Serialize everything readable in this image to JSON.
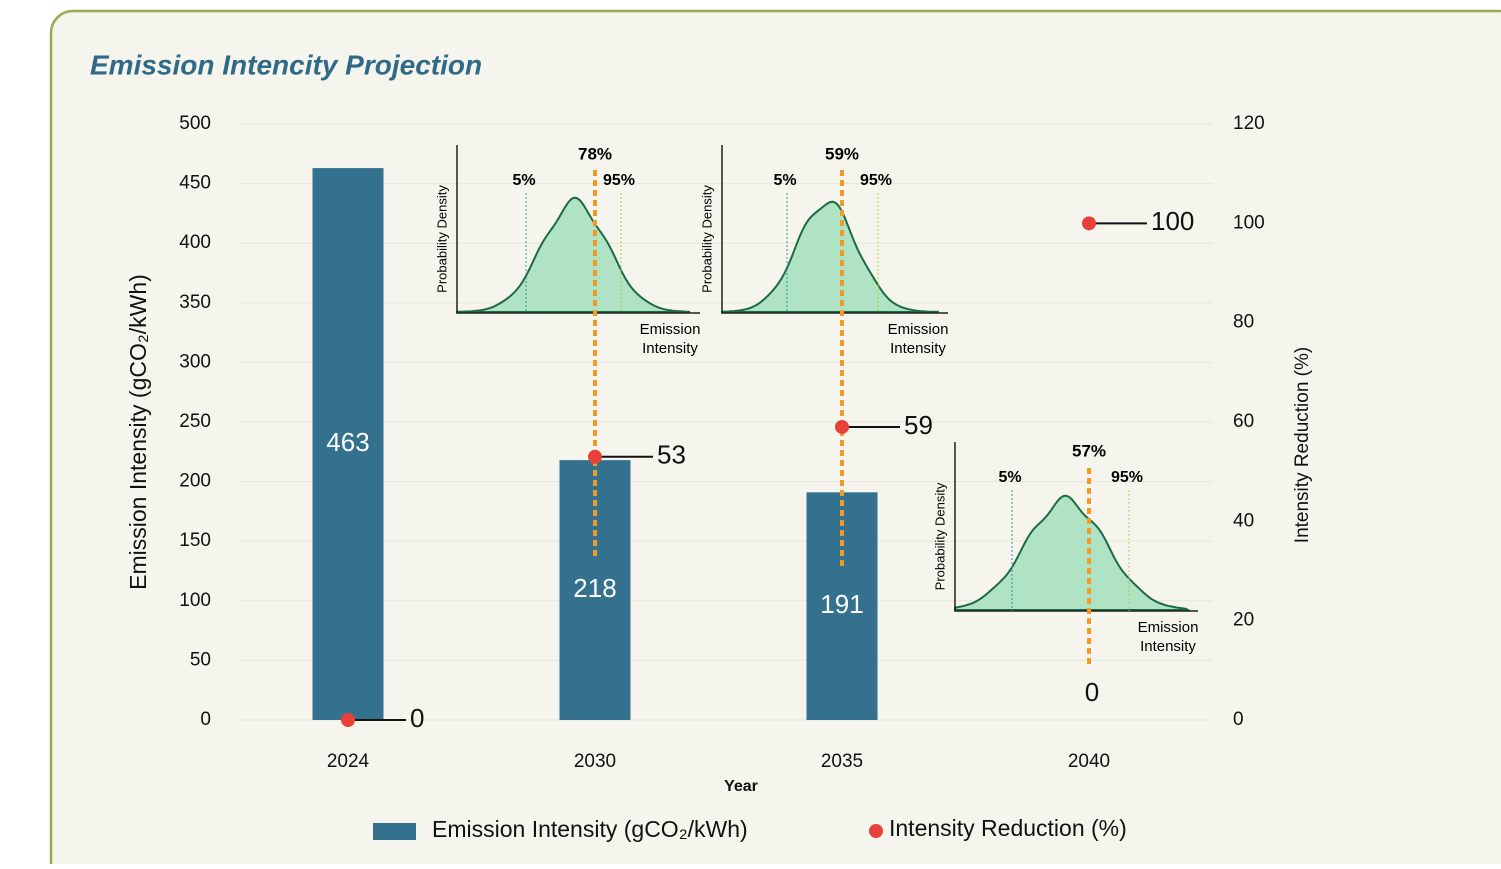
{
  "chart_data": {
    "type": "bar",
    "title": "Emission Intencity Projection",
    "categories": [
      "2024",
      "2030",
      "2035",
      "2040"
    ],
    "x_label": "Year",
    "y_label": "Emission Intensity (gCO₂/kWh)",
    "y2_label": "Intensity Reduction (%)",
    "ylim": [
      0,
      500
    ],
    "yticks": [
      0,
      50,
      100,
      150,
      200,
      250,
      300,
      350,
      400,
      450,
      500
    ],
    "y2lim": [
      0,
      120
    ],
    "y2ticks": [
      0,
      20,
      40,
      60,
      80,
      100,
      120
    ],
    "series": [
      {
        "name": "Emission Intensity (gCO₂/kWh)",
        "color": "#33718f",
        "values": [
          463,
          218,
          191,
          0
        ]
      },
      {
        "name": "Intensity Reduction (%)",
        "color": "#e8413a",
        "axis": "y2",
        "values": [
          0,
          53,
          59,
          100
        ]
      }
    ],
    "insets": [
      {
        "mean": "78%",
        "low": "5%",
        "high": "95%",
        "y_label": "Probability Density",
        "x_label": "Emission Intensity"
      },
      {
        "mean": "59%",
        "low": "5%",
        "high": "95%",
        "y_label": "Probability Density",
        "x_label": "Emission Intensity"
      },
      {
        "mean": "57%",
        "low": "5%",
        "high": "95%",
        "y_label": "Probability Density",
        "x_label": "Emission Intensity"
      }
    ],
    "legend": "bottom"
  }
}
